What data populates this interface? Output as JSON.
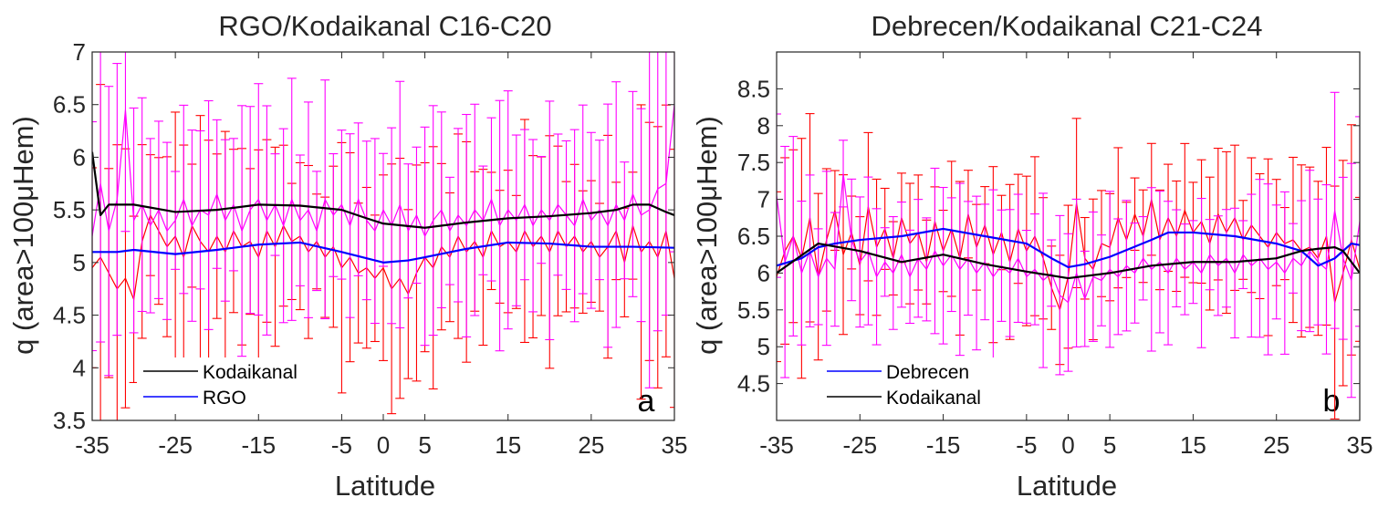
{
  "chart_data": [
    {
      "type": "line",
      "panel_letter": "a",
      "title": "RGO/Kodaikanal C16-C20",
      "xlabel": "Latitude",
      "ylabel": "q (area>100μHem)",
      "xlim": [
        -35,
        35
      ],
      "ylim": [
        3.5,
        7
      ],
      "xticks": [
        -35,
        -25,
        -15,
        -5,
        0,
        5,
        15,
        25,
        35
      ],
      "yticks": [
        3.5,
        4,
        4.5,
        5,
        5.5,
        6,
        6.5,
        7
      ],
      "ytick_labels": [
        "3.5",
        "4",
        "4.5",
        "5",
        "5.5",
        "6",
        "6.5",
        "7"
      ],
      "legend": {
        "position": "bottom-left",
        "entries": [
          "Kodaikanal",
          "RGO"
        ]
      },
      "smooth_series": [
        {
          "name": "Kodaikanal",
          "color": "#000000",
          "x": [
            -35,
            -34,
            -33,
            -30,
            -25,
            -20,
            -15,
            -10,
            -5,
            -2,
            0,
            5,
            10,
            15,
            20,
            25,
            28,
            30,
            32,
            34,
            35
          ],
          "y": [
            6.05,
            5.45,
            5.55,
            5.55,
            5.48,
            5.5,
            5.55,
            5.54,
            5.5,
            5.42,
            5.37,
            5.33,
            5.38,
            5.42,
            5.44,
            5.47,
            5.5,
            5.55,
            5.55,
            5.48,
            5.45
          ]
        },
        {
          "name": "RGO",
          "color": "#0000ff",
          "x": [
            -35,
            -32,
            -30,
            -25,
            -20,
            -15,
            -10,
            -5,
            0,
            3,
            5,
            10,
            15,
            20,
            25,
            30,
            35
          ],
          "y": [
            5.1,
            5.1,
            5.12,
            5.08,
            5.12,
            5.17,
            5.19,
            5.1,
            5.0,
            5.02,
            5.05,
            5.13,
            5.19,
            5.18,
            5.15,
            5.15,
            5.14
          ]
        }
      ],
      "noisy_series": [
        {
          "name": "Kodaikanal raw",
          "color": "#ff0000",
          "x": [
            -35,
            -34,
            -33,
            -32,
            -31,
            -30,
            -29,
            -28,
            -27,
            -26,
            -25,
            -24,
            -23,
            -22,
            -21,
            -20,
            -19,
            -18,
            -17,
            -16,
            -15,
            -14,
            -13,
            -12,
            -11,
            -10,
            -9,
            -8,
            -7,
            -6,
            -5,
            -4,
            -3,
            -2,
            -1,
            0,
            1,
            2,
            3,
            4,
            5,
            6,
            7,
            8,
            9,
            10,
            11,
            12,
            13,
            14,
            15,
            16,
            17,
            18,
            19,
            20,
            21,
            22,
            23,
            24,
            25,
            26,
            27,
            28,
            29,
            30,
            31,
            32,
            33,
            34,
            35
          ],
          "y": [
            4.95,
            5.05,
            4.9,
            4.75,
            4.85,
            4.65,
            5.2,
            5.45,
            5.3,
            5.15,
            5.25,
            5.05,
            5.35,
            5.2,
            5.1,
            5.25,
            5.1,
            5.3,
            5.15,
            5.2,
            5.05,
            5.3,
            5.15,
            5.35,
            5.2,
            5.25,
            5.1,
            5.2,
            5.05,
            5.15,
            4.95,
            5.05,
            4.9,
            4.95,
            4.85,
            4.95,
            4.75,
            4.85,
            4.7,
            4.9,
            5.05,
            4.95,
            5.15,
            5.05,
            5.25,
            5.1,
            5.2,
            5.05,
            5.3,
            5.15,
            5.2,
            5.1,
            5.3,
            5.15,
            5.25,
            5.1,
            5.3,
            5.15,
            5.25,
            5.1,
            5.2,
            5.05,
            5.15,
            5.3,
            5.0,
            5.35,
            5.1,
            5.2,
            5.05,
            5.3,
            4.85
          ]
        },
        {
          "name": "RGO raw",
          "color": "#ff00ff",
          "x": [
            -35,
            -34,
            -33,
            -32,
            -31,
            -30,
            -29,
            -28,
            -27,
            -26,
            -25,
            -24,
            -23,
            -22,
            -21,
            -20,
            -19,
            -18,
            -17,
            -16,
            -15,
            -14,
            -13,
            -12,
            -11,
            -10,
            -9,
            -8,
            -7,
            -6,
            -5,
            -4,
            -3,
            -2,
            -1,
            0,
            1,
            2,
            3,
            4,
            5,
            6,
            7,
            8,
            9,
            10,
            11,
            12,
            13,
            14,
            15,
            16,
            17,
            18,
            19,
            20,
            21,
            22,
            23,
            24,
            25,
            26,
            27,
            28,
            29,
            30,
            31,
            32,
            33,
            34,
            35
          ],
          "y": [
            5.25,
            5.75,
            5.3,
            5.6,
            6.45,
            5.4,
            5.55,
            5.35,
            5.5,
            5.3,
            5.4,
            5.6,
            5.35,
            5.5,
            5.45,
            5.65,
            5.4,
            5.55,
            5.3,
            5.5,
            5.6,
            5.4,
            5.55,
            5.35,
            5.6,
            5.4,
            5.5,
            5.3,
            5.6,
            5.45,
            5.55,
            5.35,
            5.6,
            5.4,
            5.3,
            5.5,
            5.35,
            5.55,
            5.3,
            5.45,
            5.25,
            5.4,
            5.5,
            5.3,
            5.45,
            5.35,
            5.5,
            5.4,
            5.6,
            5.35,
            5.5,
            5.4,
            5.55,
            5.35,
            5.5,
            5.4,
            5.55,
            5.45,
            5.35,
            5.6,
            5.4,
            5.5,
            5.35,
            5.55,
            5.4,
            5.65,
            5.45,
            5.5,
            5.7,
            5.75,
            6.5
          ]
        }
      ]
    },
    {
      "type": "line",
      "panel_letter": "b",
      "title": "Debrecen/Kodaikanal C21-C24",
      "xlabel": "Latitude",
      "ylabel": "q (area>100μHem)",
      "xlim": [
        -35,
        35
      ],
      "ylim": [
        4.0,
        9.0
      ],
      "xticks": [
        -35,
        -25,
        -15,
        -5,
        0,
        5,
        15,
        25,
        35
      ],
      "yticks": [
        4.5,
        5,
        5.5,
        6,
        6.5,
        7,
        7.5,
        8,
        8.5
      ],
      "ytick_labels": [
        "4.5",
        "5",
        "5.5",
        "6",
        "6.5",
        "7",
        "7.5",
        "8",
        "8.5"
      ],
      "legend": {
        "position": "bottom-left",
        "entries": [
          "Debrecen",
          "Kodaikanal"
        ]
      },
      "smooth_series": [
        {
          "name": "Debrecen",
          "color": "#0000ff",
          "x": [
            -35,
            -32,
            -30,
            -28,
            -25,
            -20,
            -15,
            -10,
            -5,
            -2,
            0,
            2,
            5,
            10,
            12,
            15,
            20,
            25,
            28,
            30,
            32,
            34,
            35
          ],
          "y": [
            6.1,
            6.2,
            6.35,
            6.4,
            6.45,
            6.5,
            6.6,
            6.5,
            6.4,
            6.2,
            6.08,
            6.12,
            6.22,
            6.45,
            6.55,
            6.55,
            6.5,
            6.4,
            6.3,
            6.1,
            6.2,
            6.4,
            6.38
          ]
        },
        {
          "name": "Kodaikanal",
          "color": "#000000",
          "x": [
            -35,
            -30,
            -25,
            -20,
            -15,
            -10,
            -5,
            0,
            5,
            10,
            15,
            20,
            25,
            28,
            30,
            32,
            33,
            35
          ],
          "y": [
            6.0,
            6.4,
            6.3,
            6.15,
            6.25,
            6.12,
            6.02,
            5.93,
            6.0,
            6.1,
            6.15,
            6.15,
            6.2,
            6.3,
            6.33,
            6.35,
            6.3,
            6.0
          ]
        }
      ],
      "noisy_series": [
        {
          "name": "Debrecen raw",
          "color": "#ff0000",
          "x": [
            -35,
            -34,
            -33,
            -32,
            -31,
            -30,
            -29,
            -28,
            -27,
            -26,
            -25,
            -24,
            -23,
            -22,
            -21,
            -20,
            -19,
            -18,
            -17,
            -16,
            -15,
            -14,
            -13,
            -12,
            -11,
            -10,
            -9,
            -8,
            -7,
            -6,
            -5,
            -4,
            -3,
            -2,
            -1,
            0,
            1,
            2,
            3,
            4,
            5,
            6,
            7,
            8,
            9,
            10,
            11,
            12,
            13,
            14,
            15,
            16,
            17,
            18,
            19,
            20,
            21,
            22,
            23,
            24,
            25,
            26,
            27,
            28,
            29,
            30,
            31,
            32,
            33,
            34,
            35
          ],
          "y": [
            5.95,
            6.3,
            6.5,
            6.2,
            6.75,
            5.95,
            6.45,
            6.85,
            6.25,
            6.55,
            6.1,
            6.9,
            6.35,
            6.6,
            6.2,
            6.75,
            6.4,
            6.55,
            6.15,
            6.7,
            6.3,
            6.6,
            6.2,
            6.8,
            6.35,
            6.65,
            6.25,
            6.55,
            6.15,
            6.6,
            6.3,
            6.5,
            6.2,
            5.8,
            5.5,
            5.95,
            6.95,
            6.2,
            6.05,
            6.4,
            6.35,
            6.75,
            6.45,
            6.8,
            6.5,
            7.0,
            6.45,
            6.75,
            6.5,
            6.85,
            6.55,
            6.7,
            6.4,
            6.8,
            6.55,
            6.75,
            6.45,
            6.65,
            6.5,
            6.35,
            6.55,
            6.4,
            6.45,
            6.3,
            6.35,
            6.2,
            6.5,
            5.6,
            6.0,
            6.45,
            6.05
          ]
        },
        {
          "name": "Kodaikanal raw",
          "color": "#ff00ff",
          "x": [
            -35,
            -34,
            -33,
            -32,
            -31,
            -30,
            -29,
            -28,
            -27,
            -26,
            -25,
            -24,
            -23,
            -22,
            -21,
            -20,
            -19,
            -18,
            -17,
            -16,
            -15,
            -14,
            -13,
            -12,
            -11,
            -10,
            -9,
            -8,
            -7,
            -6,
            -5,
            -4,
            -3,
            -2,
            -1,
            0,
            1,
            2,
            3,
            4,
            5,
            6,
            7,
            8,
            9,
            10,
            11,
            12,
            13,
            14,
            15,
            16,
            17,
            18,
            19,
            20,
            21,
            22,
            23,
            24,
            25,
            26,
            27,
            28,
            29,
            30,
            31,
            32,
            33,
            34,
            35
          ],
          "y": [
            7.05,
            6.15,
            6.5,
            6.0,
            6.3,
            5.95,
            6.2,
            6.05,
            7.35,
            6.45,
            6.15,
            6.3,
            5.95,
            6.15,
            6.0,
            6.25,
            5.95,
            6.2,
            6.05,
            6.3,
            6.1,
            6.25,
            6.05,
            6.2,
            6.0,
            6.15,
            5.95,
            6.1,
            6.0,
            6.2,
            5.95,
            6.05,
            5.9,
            6.0,
            5.7,
            5.6,
            6.0,
            5.65,
            5.95,
            5.9,
            6.05,
            5.95,
            6.1,
            6.0,
            6.2,
            6.05,
            6.15,
            6.0,
            6.2,
            6.05,
            6.15,
            6.0,
            6.25,
            6.1,
            6.2,
            6.0,
            6.25,
            6.1,
            6.2,
            6.05,
            6.15,
            6.0,
            6.2,
            6.1,
            6.3,
            6.15,
            6.05,
            6.85,
            6.2,
            5.9,
            6.7
          ]
        }
      ]
    }
  ]
}
